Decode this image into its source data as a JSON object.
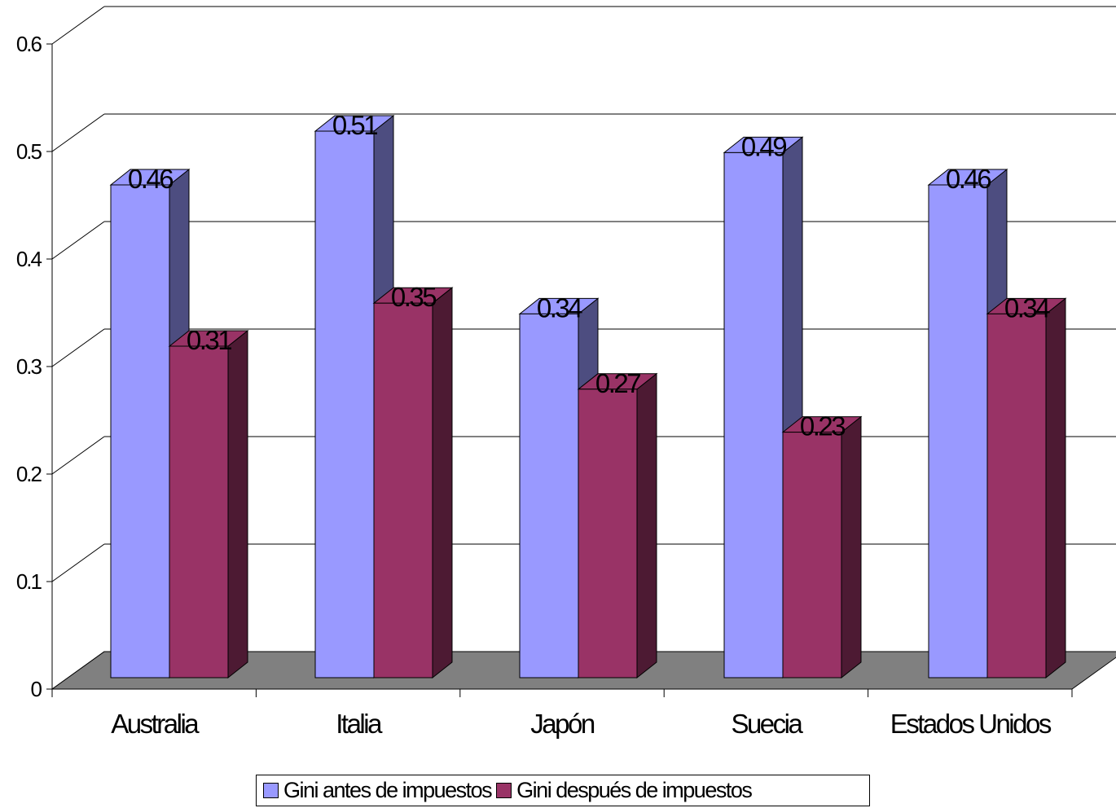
{
  "chart_data": {
    "type": "bar",
    "style": "3d-clustered-column",
    "categories": [
      "Australia",
      "Italia",
      "Japón",
      "Suecia",
      "Estados Unidos"
    ],
    "series": [
      {
        "name": "Gini antes de impuestos",
        "values": [
          0.46,
          0.51,
          0.34,
          0.49,
          0.46
        ],
        "color": "#9999ff",
        "side_color": "#4d4d80"
      },
      {
        "name": "Gini después de impuestos",
        "values": [
          0.31,
          0.35,
          0.27,
          0.23,
          0.34
        ],
        "color": "#993366",
        "side_color": "#4d1a33"
      }
    ],
    "data_labels": [
      [
        "0.46",
        "0.51",
        "0.34",
        "0.49",
        "0.46"
      ],
      [
        "0.31",
        "0.35",
        "0.27",
        "0.23",
        "0.34"
      ]
    ],
    "yticks": [
      "0",
      "0.1",
      "0.2",
      "0.3",
      "0.4",
      "0.5",
      "0.6"
    ],
    "ylim": [
      0,
      0.6
    ],
    "title": "",
    "xlabel": "",
    "ylabel": "",
    "grid": true,
    "legend_position": "bottom",
    "floor_color": "#808080"
  }
}
